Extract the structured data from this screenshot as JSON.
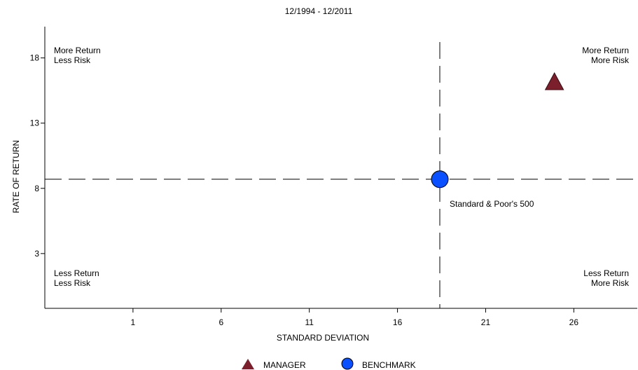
{
  "chart_data": {
    "type": "scatter",
    "title": "12/1994 - 12/2011",
    "xlabel": "STANDARD DEVIATION",
    "ylabel": "RATE OF RETURN",
    "xlim": [
      -4,
      29.6
    ],
    "ylim": [
      -1.2,
      20.4
    ],
    "x_ticks": [
      1,
      6,
      11,
      16,
      21,
      26
    ],
    "y_ticks": [
      3,
      8,
      13,
      18
    ],
    "grid": false,
    "reference_lines": {
      "x": 18.4,
      "y": 8.7,
      "style": "dashed"
    },
    "quadrant_labels": {
      "top_left": [
        "More Return",
        "Less Risk"
      ],
      "top_right": [
        "More Return",
        "More Risk"
      ],
      "bottom_left": [
        "Less Return",
        "Less Risk"
      ],
      "bottom_right": [
        "Less Return",
        "More Risk"
      ]
    },
    "series": [
      {
        "name": "MANAGER",
        "marker": "triangle",
        "color": "#7a1f2b",
        "points": [
          {
            "x": 24.9,
            "y": 16.1
          }
        ]
      },
      {
        "name": "BENCHMARK",
        "marker": "circle",
        "color": "#0a50ff",
        "points": [
          {
            "x": 18.4,
            "y": 8.7,
            "label": "Standard & Poor's 500"
          }
        ]
      }
    ],
    "legend_position": "bottom-center"
  }
}
